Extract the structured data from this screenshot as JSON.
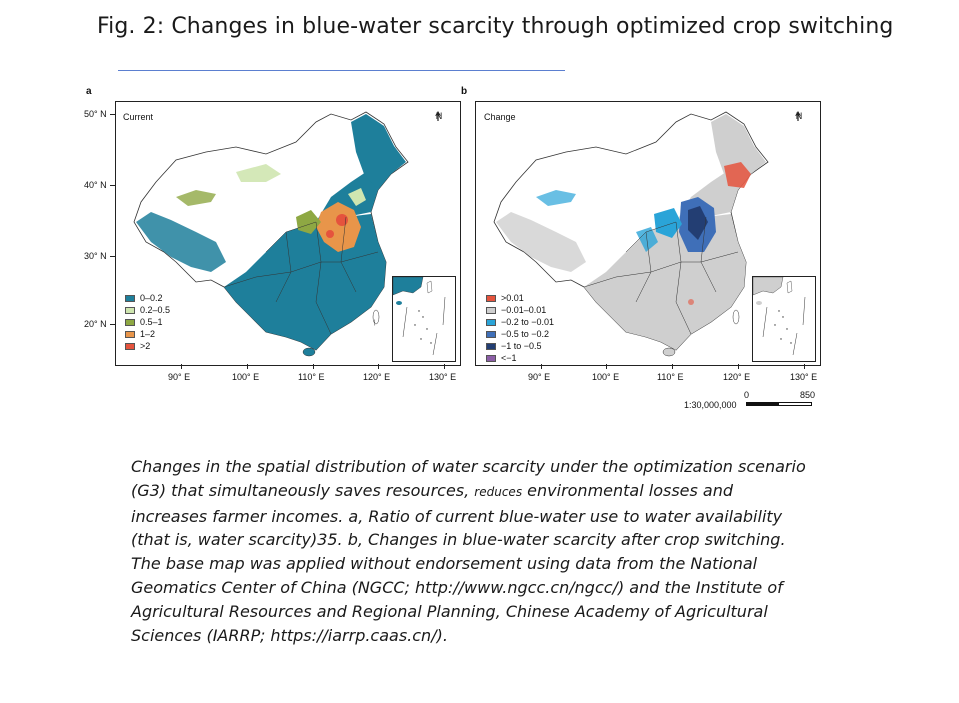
{
  "figure": {
    "title": "Fig. 2: Changes in blue-water scarcity through optimized crop switching"
  },
  "panel_a": {
    "label": "a",
    "title": "Current",
    "north": "N",
    "legend": [
      {
        "label": "0–0.2",
        "color": "#1e7f9b"
      },
      {
        "label": "0.2–0.5",
        "color": "#cfe6b0"
      },
      {
        "label": "0.5–1",
        "color": "#8ea843"
      },
      {
        "label": "1–2",
        "color": "#e8954a"
      },
      {
        "label": ">2",
        "color": "#e5533d"
      }
    ],
    "lat_labels": [
      "50° N",
      "40° N",
      "30° N",
      "20° N"
    ],
    "lon_labels": [
      "90° E",
      "100° E",
      "110° E",
      "120° E",
      "130° E"
    ]
  },
  "panel_b": {
    "label": "b",
    "title": "Change",
    "north": "N",
    "legend": [
      {
        "label": ">0.01",
        "color": "#e5533d"
      },
      {
        "label": "−0.01–0.01",
        "color": "#cfcfcf"
      },
      {
        "label": "−0.2 to −0.01",
        "color": "#2aa4d8"
      },
      {
        "label": "−0.5 to −0.2",
        "color": "#3f6fb8"
      },
      {
        "label": "−1 to −0.5",
        "color": "#233e73"
      },
      {
        "label": "<−1",
        "color": "#8c5ea6"
      }
    ],
    "lon_labels": [
      "90° E",
      "100° E",
      "110° E",
      "120° E",
      "130° E"
    ],
    "scale": {
      "ratio": "1:30,000,000",
      "start": "0",
      "end": "850"
    }
  },
  "caption": {
    "part1": "Changes in the spatial distribution of water scarcity under the optimization scenario (G3) that simultaneously saves resources, ",
    "small_word": "reduces",
    "part2": " environmental losses and increases farmer incomes. a, Ratio of current blue-water use to water availability (that is, water scarcity)35. b, Changes in blue-water scarcity after crop switching. The base map was applied without endorsement using data from the National Geomatics Center of China (NGCC; http://www.ngcc.cn/ngcc/) and the Institute of Agricultural Resources and Regional Planning, Chinese Academy of Agricultural Sciences (IARRP; https://iarrp.caas.cn/)."
  },
  "colors": {
    "scarcity_base": "#1e7f9b",
    "change_base": "#cfcfcf",
    "border": "#333333"
  }
}
